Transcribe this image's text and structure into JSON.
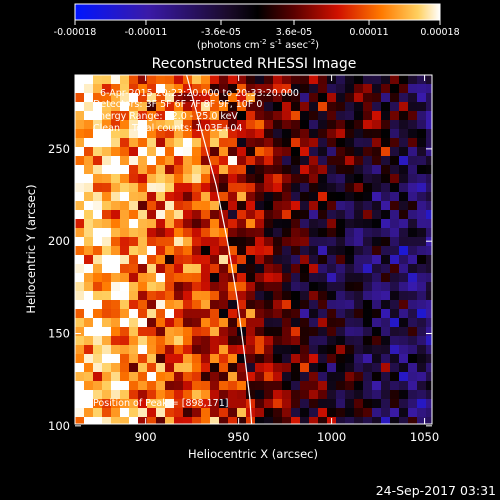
{
  "chart_data": {
    "type": "heatmap",
    "title": "Reconstructed RHESSI Image",
    "xlabel": "Heliocentric X (arcsec)",
    "ylabel": "Heliocentric Y (arcsec)",
    "xlim": [
      862,
      1054
    ],
    "ylim": [
      101,
      290
    ],
    "xticks": [
      900,
      950,
      1000,
      1050
    ],
    "yticks": [
      100,
      150,
      200,
      250
    ],
    "colorbar": {
      "label": "(photons cm",
      "label_exp1": "-2",
      "label_mid": " s",
      "label_exp2": "-1",
      "label_mid2": " asec",
      "label_exp3": "-2",
      "label_end": ")",
      "range": [
        -0.00018,
        0.00018
      ],
      "ticks": [
        "-0.00018",
        "-0.00011",
        "-3.6e-05",
        "3.6e-05",
        "0.00011",
        "0.00018"
      ]
    },
    "annotations": {
      "time_range": "6-Apr-2015 20:23:20.000 to 20:33:20.000",
      "detectors": "Detectors: 3F 5F 6F 7F 8F 9F, 10F 0",
      "energy_range": "Energy Range: 12.0 - 25.0 keV",
      "clean_info": "Clean    Total counts: 1.03E+04",
      "peak": "Position of Peak = [898,171]"
    },
    "limb_curve": [
      [
        922,
        290
      ],
      [
        930,
        260
      ],
      [
        938,
        230
      ],
      [
        944,
        200
      ],
      [
        949,
        170
      ],
      [
        953,
        140
      ],
      [
        956,
        115
      ],
      [
        957,
        101
      ]
    ],
    "colors": {
      "background": "#000000",
      "axes": "#ffffff",
      "limb": "#ffffff"
    }
  },
  "footer": {
    "timestamp": "24-Sep-2017 03:31"
  }
}
